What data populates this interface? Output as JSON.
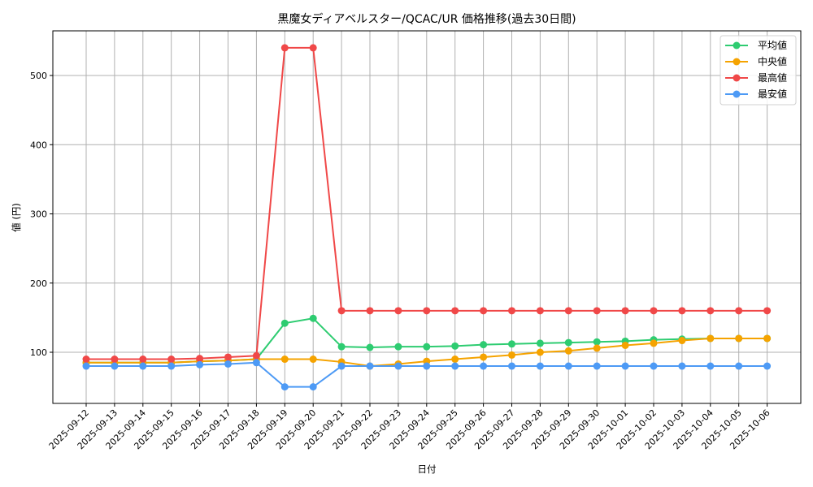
{
  "chart_data": {
    "type": "line",
    "title": "黒魔女ディアベルスター/QCAC/UR 価格推移(過去30日間)",
    "xlabel": "日付",
    "ylabel": "値 (円)",
    "ylim": [
      26,
      564
    ],
    "yticks": [
      100,
      200,
      300,
      400,
      500
    ],
    "grid": true,
    "legend_position": "upper right",
    "x": [
      "2025-09-12",
      "2025-09-13",
      "2025-09-14",
      "2025-09-15",
      "2025-09-16",
      "2025-09-17",
      "2025-09-18",
      "2025-09-19",
      "2025-09-20",
      "2025-09-21",
      "2025-09-22",
      "2025-09-23",
      "2025-09-24",
      "2025-09-25",
      "2025-09-26",
      "2025-09-27",
      "2025-09-28",
      "2025-09-29",
      "2025-09-30",
      "2025-10-01",
      "2025-10-02",
      "2025-10-03",
      "2025-10-04",
      "2025-10-05",
      "2025-10-06"
    ],
    "series": [
      {
        "name": "平均値",
        "color": "#2ecc71",
        "values": [
          85,
          85,
          85,
          85,
          87,
          88,
          90,
          142,
          149,
          108,
          107,
          108,
          108,
          109,
          111,
          112,
          113,
          114,
          115,
          116,
          118,
          119,
          120,
          120,
          120
        ]
      },
      {
        "name": "中央値",
        "color": "#f5a300",
        "values": [
          85,
          85,
          85,
          85,
          87,
          88,
          90,
          90,
          90,
          86,
          80,
          83,
          87,
          90,
          93,
          96,
          100,
          102,
          106,
          110,
          113,
          117,
          120,
          120,
          120
        ]
      },
      {
        "name": "最高値",
        "color": "#f04848",
        "values": [
          90,
          90,
          90,
          90,
          91,
          93,
          95,
          540,
          540,
          160,
          160,
          160,
          160,
          160,
          160,
          160,
          160,
          160,
          160,
          160,
          160,
          160,
          160,
          160,
          160
        ]
      },
      {
        "name": "最安値",
        "color": "#4d9af5",
        "values": [
          80,
          80,
          80,
          80,
          82,
          83,
          85,
          50,
          50,
          80,
          80,
          80,
          80,
          80,
          80,
          80,
          80,
          80,
          80,
          80,
          80,
          80,
          80,
          80,
          80
        ]
      }
    ]
  }
}
